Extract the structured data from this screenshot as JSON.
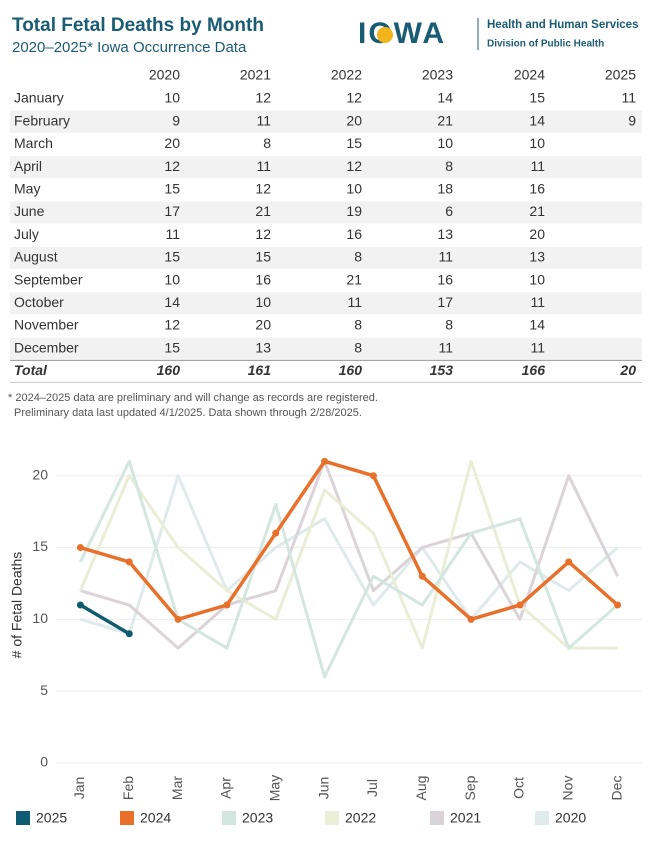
{
  "header": {
    "title": "Total Fetal Deaths by Month",
    "subtitle": "2020–2025* Iowa Occurrence Data",
    "logo_text": "IOWA",
    "org_line1": "Health and Human Services",
    "org_line2": "Division of Public Health"
  },
  "table": {
    "columns": [
      "2020",
      "2021",
      "2022",
      "2023",
      "2024",
      "2025"
    ],
    "rows": [
      {
        "label": "January",
        "values": [
          10,
          12,
          12,
          14,
          15,
          11
        ]
      },
      {
        "label": "February",
        "values": [
          9,
          11,
          20,
          21,
          14,
          9
        ]
      },
      {
        "label": "March",
        "values": [
          20,
          8,
          15,
          10,
          10,
          null
        ]
      },
      {
        "label": "April",
        "values": [
          12,
          11,
          12,
          8,
          11,
          null
        ]
      },
      {
        "label": "May",
        "values": [
          15,
          12,
          10,
          18,
          16,
          null
        ]
      },
      {
        "label": "June",
        "values": [
          17,
          21,
          19,
          6,
          21,
          null
        ]
      },
      {
        "label": "July",
        "values": [
          11,
          12,
          16,
          13,
          20,
          null
        ]
      },
      {
        "label": "August",
        "values": [
          15,
          15,
          8,
          11,
          13,
          null
        ]
      },
      {
        "label": "September",
        "values": [
          10,
          16,
          21,
          16,
          10,
          null
        ]
      },
      {
        "label": "October",
        "values": [
          14,
          10,
          11,
          17,
          11,
          null
        ]
      },
      {
        "label": "November",
        "values": [
          12,
          20,
          8,
          8,
          14,
          null
        ]
      },
      {
        "label": "December",
        "values": [
          15,
          13,
          8,
          11,
          11,
          null
        ]
      }
    ],
    "total": {
      "label": "Total",
      "values": [
        160,
        161,
        160,
        153,
        166,
        20
      ]
    }
  },
  "footnotes": [
    "* 2024–2025 data are preliminary and will change as records are registered.",
    "Preliminary data last updated 4/1/2025. Data shown through 2/28/2025."
  ],
  "chart_data": {
    "type": "line",
    "y_label": "# of Fetal Deaths",
    "categories": [
      "Jan",
      "Feb",
      "Mar",
      "Apr",
      "May",
      "Jun",
      "Jul",
      "Aug",
      "Sep",
      "Oct",
      "Nov",
      "Dec"
    ],
    "ylim": [
      0,
      22
    ],
    "yticks": [
      0,
      5,
      10,
      15,
      20
    ],
    "grid": true,
    "legend": "bottom",
    "series": [
      {
        "name": "2025",
        "color": "#0f5b72",
        "markers": true,
        "values": [
          11,
          9,
          null,
          null,
          null,
          null,
          null,
          null,
          null,
          null,
          null,
          null
        ]
      },
      {
        "name": "2024",
        "color": "#e8702a",
        "markers": true,
        "values": [
          15,
          14,
          10,
          11,
          16,
          21,
          20,
          13,
          10,
          11,
          14,
          11
        ]
      },
      {
        "name": "2023",
        "color": "#d3e6e0",
        "markers": false,
        "values": [
          14,
          21,
          10,
          8,
          18,
          6,
          13,
          11,
          16,
          17,
          8,
          11
        ]
      },
      {
        "name": "2022",
        "color": "#eaeed6",
        "markers": false,
        "values": [
          12,
          20,
          15,
          12,
          10,
          19,
          16,
          8,
          21,
          11,
          8,
          8
        ]
      },
      {
        "name": "2021",
        "color": "#dad4d9",
        "markers": false,
        "values": [
          12,
          11,
          8,
          11,
          12,
          21,
          12,
          15,
          16,
          10,
          20,
          13
        ]
      },
      {
        "name": "2020",
        "color": "#dfeaeb",
        "markers": false,
        "values": [
          10,
          9,
          20,
          12,
          15,
          17,
          11,
          15,
          10,
          14,
          12,
          15
        ]
      }
    ]
  }
}
